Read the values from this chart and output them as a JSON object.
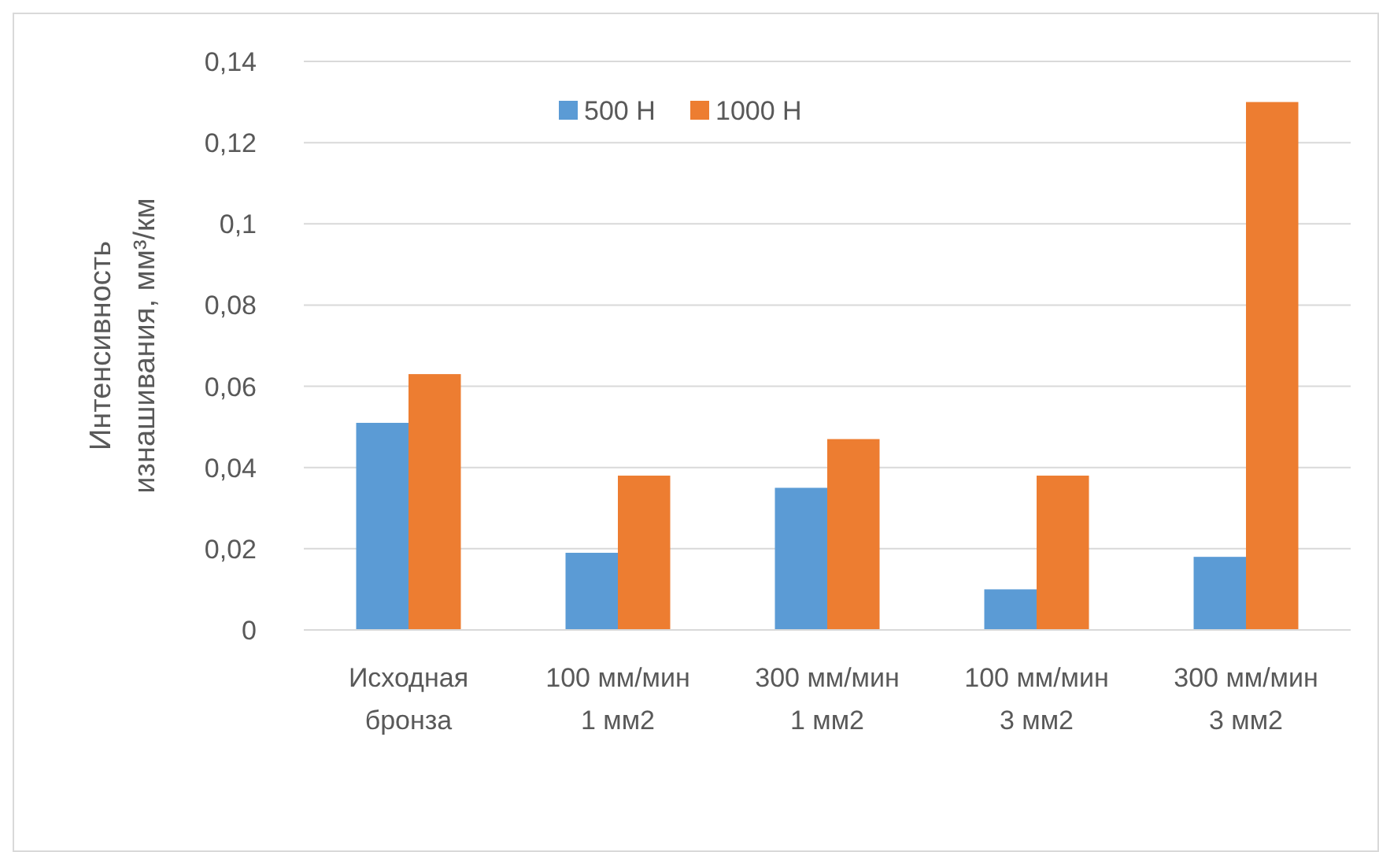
{
  "chart_data": {
    "type": "bar",
    "ylabel": "Интенсивность\nизнашивания, мм³/км",
    "categories": [
      "Исходная\nбронза",
      "100 мм/мин\n1 мм2",
      "300 мм/мин\n1 мм2",
      "100 мм/мин\n3 мм2",
      "300 мм/мин\n3 мм2"
    ],
    "series": [
      {
        "name": "500 Н",
        "color": "#5b9bd5",
        "values": [
          0.051,
          0.019,
          0.035,
          0.01,
          0.018
        ]
      },
      {
        "name": "1000 Н",
        "color": "#ed7d31",
        "values": [
          0.063,
          0.038,
          0.047,
          0.038,
          0.13
        ]
      }
    ],
    "ylim": [
      0,
      0.14
    ],
    "yticks": [
      {
        "value": 0,
        "label": "0"
      },
      {
        "value": 0.02,
        "label": "0,02"
      },
      {
        "value": 0.04,
        "label": "0,04"
      },
      {
        "value": 0.06,
        "label": "0,06"
      },
      {
        "value": 0.08,
        "label": "0,08"
      },
      {
        "value": 0.1,
        "label": "0,1"
      },
      {
        "value": 0.12,
        "label": "0,12"
      },
      {
        "value": 0.14,
        "label": "0,14"
      }
    ],
    "grid": "y",
    "legend": "top"
  }
}
